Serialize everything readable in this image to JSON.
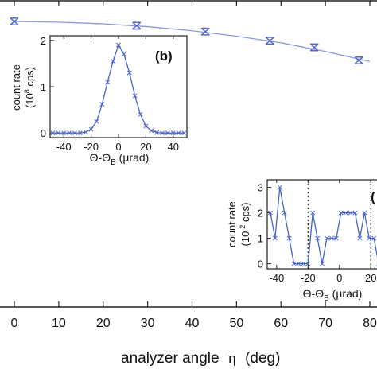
{
  "chart_data": [
    {
      "id": "main",
      "type": "scatter",
      "title": "",
      "xlabel": "analyzer angle",
      "xlabel_symbol": "η",
      "xlabel_unit": "(deg)",
      "xlim": [
        -1.5,
        81
      ],
      "x_ticks": [
        0,
        10,
        20,
        30,
        40,
        50,
        60,
        70,
        80
      ],
      "x_tick_labels": [
        "0",
        "10",
        "20",
        "30",
        "40",
        "50",
        "60",
        "70",
        "80"
      ],
      "series": [
        {
          "marker": "hourglass-errorbar",
          "x": [
            0,
            27.5,
            43,
            57.5,
            67.5,
            77.5
          ],
          "y": [
            1.0,
            0.968,
            0.924,
            0.856,
            0.806,
            0.708
          ],
          "err": [
            0.025,
            0.025,
            0.025,
            0.025,
            0.025,
            0.025
          ]
        },
        {
          "type": "line",
          "x": [
            0,
            10,
            20,
            30,
            40,
            50,
            60,
            70,
            80
          ],
          "y": [
            1.0,
            0.995,
            0.982,
            0.961,
            0.93,
            0.89,
            0.84,
            0.775,
            0.7
          ]
        }
      ],
      "colors": {
        "marker": "#5566cc",
        "line": "#8899dd",
        "axis": "#222222"
      }
    },
    {
      "id": "inset-b",
      "type": "line",
      "label": "(b)",
      "xlabel": "Θ-Θ",
      "xlabel_sub": "B",
      "xlabel_unit": " (µrad)",
      "ylabel_line1": "count rate",
      "ylabel_line2": "(10",
      "ylabel_exp": "8",
      "ylabel_end": " cps)",
      "xlim": [
        -50,
        50
      ],
      "ylim": [
        -0.1,
        2.1
      ],
      "x_ticks": [
        -40,
        -20,
        0,
        20,
        40
      ],
      "x_tick_labels": [
        "-40",
        "-20",
        "0",
        "20",
        "40"
      ],
      "y_ticks": [
        0,
        1,
        2
      ],
      "y_tick_labels": [
        "0",
        "1",
        "2"
      ],
      "x": [
        -48,
        -44,
        -40,
        -36,
        -32,
        -28,
        -24,
        -20,
        -16,
        -12,
        -8,
        -4,
        0,
        4,
        8,
        12,
        16,
        20,
        24,
        28,
        32,
        36,
        40,
        44,
        48
      ],
      "y": [
        0,
        0,
        0,
        0,
        0,
        0,
        0.02,
        0.08,
        0.25,
        0.62,
        1.1,
        1.55,
        1.9,
        1.7,
        1.3,
        0.8,
        0.4,
        0.15,
        0.05,
        0.01,
        0,
        0,
        0,
        0,
        0
      ],
      "colors": {
        "line": "#4a63c8"
      }
    },
    {
      "id": "inset-c",
      "type": "line",
      "label": "(",
      "xlabel": "Θ-Θ",
      "xlabel_sub": "B",
      "xlabel_unit": " (µrad)",
      "ylabel_line1": "count rate",
      "ylabel_line2": "(10",
      "ylabel_exp": "-2",
      "ylabel_end": " cps)",
      "xlim": [
        -46,
        28
      ],
      "ylim": [
        -0.2,
        3.3
      ],
      "x_ticks": [
        -40,
        -20,
        0,
        20
      ],
      "x_tick_labels": [
        "-40",
        "-20",
        "0",
        "20"
      ],
      "y_ticks": [
        0,
        1,
        2,
        3
      ],
      "y_tick_labels": [
        "0",
        "1",
        "2",
        "3"
      ],
      "vlines": [
        -20,
        20
      ],
      "x": [
        -44,
        -41,
        -38,
        -35,
        -32,
        -29,
        -26,
        -23,
        -20,
        -17,
        -14,
        -11,
        -8,
        -5,
        -2,
        1,
        4,
        7,
        10,
        13,
        16,
        19,
        22,
        25,
        28
      ],
      "y": [
        2,
        1,
        3,
        2,
        1,
        0,
        0,
        0,
        0,
        2,
        1,
        0,
        1,
        1,
        1,
        2,
        2,
        2,
        2,
        1,
        2,
        1,
        1,
        0,
        0
      ],
      "colors": {
        "line": "#4a63c8",
        "vline": "#222222"
      }
    }
  ]
}
